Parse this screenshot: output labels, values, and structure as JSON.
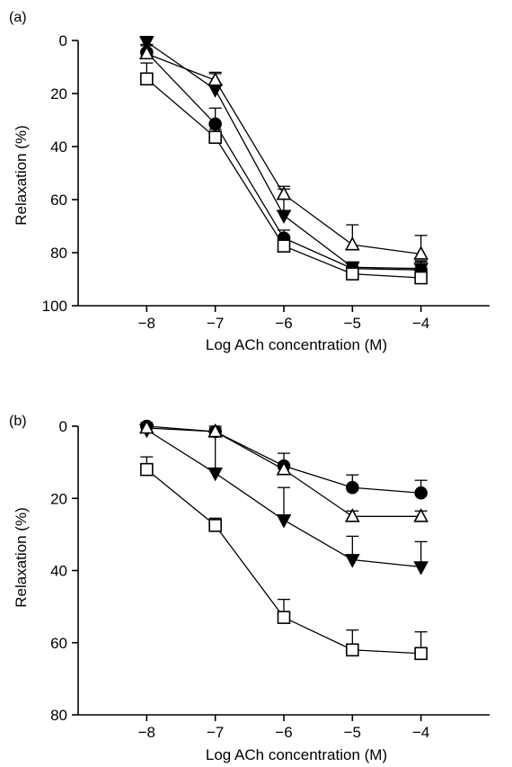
{
  "chart_data": [
    {
      "type": "line",
      "panel_label": "(a)",
      "xlabel": "Log ACh concentration (M)",
      "ylabel": "Relaxation (%)",
      "x": [
        -8,
        -7,
        -6,
        -5,
        -4
      ],
      "x_tick_labels": [
        "−8",
        "−7",
        "−6",
        "−5",
        "−4"
      ],
      "xlim": [
        -9,
        -3
      ],
      "ylim": [
        0,
        100
      ],
      "y_inverted": true,
      "y_ticks": [
        0,
        20,
        40,
        60,
        80,
        100
      ],
      "grid": false,
      "legend": "none",
      "series": [
        {
          "marker": "circle-filled",
          "values": [
            4.5,
            31.5,
            74.5,
            86,
            86.5
          ],
          "errors": [
            3,
            6,
            3,
            2,
            3
          ]
        },
        {
          "marker": "triangle-open",
          "values": [
            5,
            15,
            58,
            77,
            80.5
          ],
          "errors": [
            3,
            3,
            3,
            7.5,
            7
          ]
        },
        {
          "marker": "triangle-down-filled",
          "values": [
            0.5,
            18.5,
            66,
            85.5,
            86
          ],
          "errors": [
            2,
            6,
            10,
            2,
            3
          ]
        },
        {
          "marker": "square-open",
          "values": [
            14.5,
            36.5,
            77.5,
            88,
            89.5
          ],
          "errors": [
            6,
            3,
            3,
            2,
            2
          ]
        }
      ]
    },
    {
      "type": "line",
      "panel_label": "(b)",
      "xlabel": "Log ACh concentration (M)",
      "ylabel": "Relaxation (%)",
      "x": [
        -8,
        -7,
        -6,
        -5,
        -4
      ],
      "x_tick_labels": [
        "−8",
        "−7",
        "−6",
        "−5",
        "−4"
      ],
      "xlim": [
        -9,
        -3
      ],
      "ylim": [
        0,
        80
      ],
      "y_inverted": true,
      "y_ticks": [
        0,
        20,
        40,
        60,
        80
      ],
      "grid": false,
      "legend": "none",
      "series": [
        {
          "marker": "circle-filled",
          "values": [
            0,
            1.5,
            11,
            17,
            18.5
          ],
          "errors": [
            1,
            1,
            3.5,
            3.5,
            3.5
          ]
        },
        {
          "marker": "triangle-open",
          "values": [
            0.5,
            1.5,
            12,
            25,
            25
          ],
          "errors": [
            1,
            1.5,
            1.5,
            1.5,
            1.5
          ]
        },
        {
          "marker": "triangle-down-filled",
          "values": [
            1,
            13,
            26,
            37,
            39
          ],
          "errors": [
            1,
            10,
            9,
            6.5,
            7
          ]
        },
        {
          "marker": "square-open",
          "values": [
            12,
            27.5,
            53,
            62,
            63
          ],
          "errors": [
            3.5,
            2,
            5,
            5.5,
            6
          ]
        }
      ]
    }
  ]
}
